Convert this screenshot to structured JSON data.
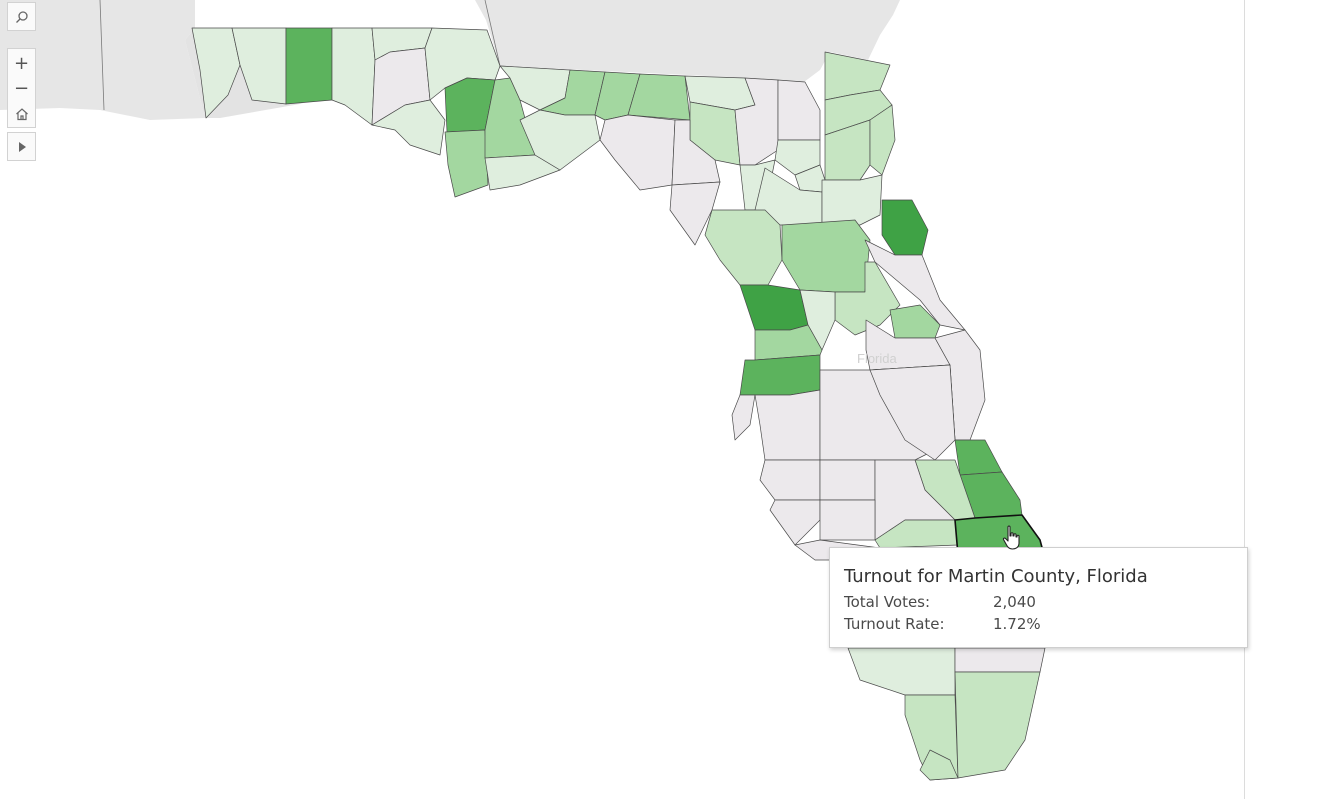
{
  "map": {
    "state_label": "Florida",
    "color_scale": {
      "none": "#ece9ec",
      "low": "#dfeede",
      "light": "#c6e5c2",
      "medium": "#a3d7a0",
      "strong": "#7dc47b",
      "high": "#5cb35d",
      "max": "#3fa245"
    }
  },
  "toolbar": {
    "search_icon": "search-icon",
    "zoom_in_label": "+",
    "zoom_out_label": "−",
    "home_icon": "home-icon",
    "expand_icon": "play-icon"
  },
  "tooltip": {
    "title": "Turnout for Martin County, Florida",
    "rows": [
      {
        "label": "Total Votes:",
        "value": "2,040"
      },
      {
        "label": "Turnout Rate:",
        "value": "1.72%"
      }
    ]
  }
}
